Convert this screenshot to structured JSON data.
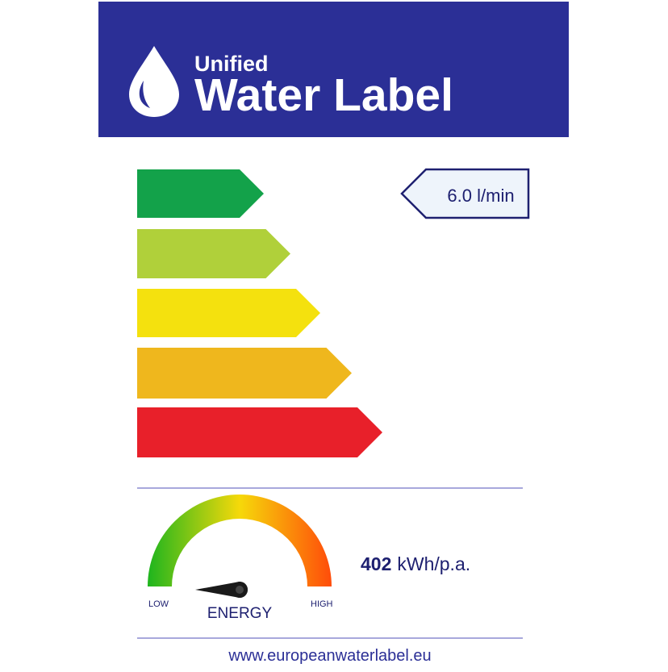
{
  "header": {
    "subtitle": "Unified",
    "title": "Water Label",
    "logo_icon": "water-drop-icon",
    "background": "#2b2f96"
  },
  "rating": {
    "classes": [
      {
        "color": "#13a24a"
      },
      {
        "color": "#b0d03a"
      },
      {
        "color": "#f4e10e"
      },
      {
        "color": "#efb71d"
      },
      {
        "color": "#e8202a"
      }
    ],
    "indicator": {
      "value": "6.0 l/min",
      "class_index": 0
    }
  },
  "energy": {
    "low_label": "LOW",
    "high_label": "HIGH",
    "gauge_label": "ENERGY",
    "value": "402",
    "unit": "kWh/p.a.",
    "gauge_level": 0.0
  },
  "footer": {
    "url": "www.europeanwaterlabel.eu"
  }
}
